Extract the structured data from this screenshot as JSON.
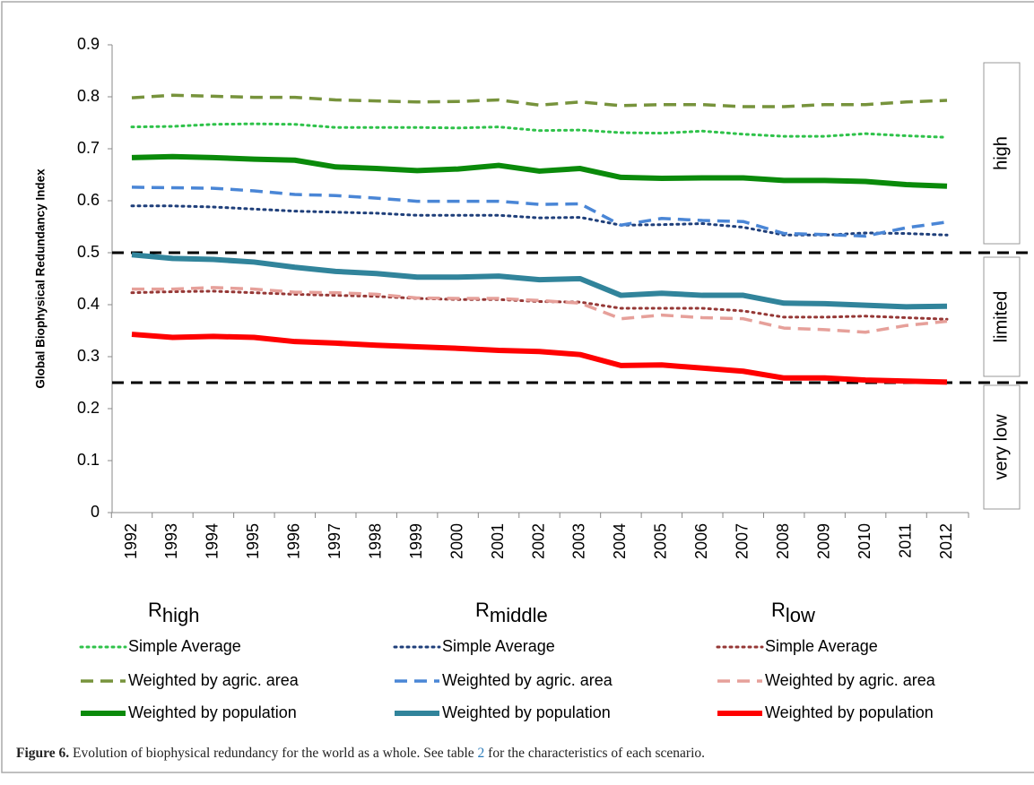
{
  "chart_data": {
    "type": "line",
    "y_label": "Global Biophysical Redundancy Index",
    "categories": [
      "1992",
      "1993",
      "1994",
      "1995",
      "1996",
      "1997",
      "1998",
      "1999",
      "2000",
      "2001",
      "2002",
      "2003",
      "2004",
      "2005",
      "2006",
      "2007",
      "2008",
      "2009",
      "2010",
      "2011",
      "2012"
    ],
    "ylim": [
      0,
      0.9
    ],
    "yticks": [
      0,
      0.1,
      0.2,
      0.3,
      0.4,
      0.5,
      0.6,
      0.7,
      0.8,
      0.9
    ],
    "thresholds": [
      0.5,
      0.25
    ],
    "bands": [
      "high",
      "limited",
      "very low"
    ],
    "legend_groups": [
      {
        "base": "R",
        "subscript": "high"
      },
      {
        "base": "R",
        "subscript": "middle"
      },
      {
        "base": "R",
        "subscript": "low"
      }
    ],
    "series": [
      {
        "name": "Simple Average",
        "color": "#2fc24a",
        "style": "dotted",
        "values": [
          0.742,
          0.743,
          0.747,
          0.748,
          0.747,
          0.741,
          0.741,
          0.741,
          0.74,
          0.742,
          0.735,
          0.736,
          0.731,
          0.73,
          0.734,
          0.728,
          0.724,
          0.724,
          0.729,
          0.725,
          0.722
        ]
      },
      {
        "name": "Weighted by agric. area",
        "color": "#77933c",
        "style": "dashed",
        "values": [
          0.798,
          0.803,
          0.801,
          0.799,
          0.799,
          0.794,
          0.792,
          0.79,
          0.791,
          0.794,
          0.784,
          0.79,
          0.783,
          0.785,
          0.785,
          0.781,
          0.781,
          0.785,
          0.785,
          0.79,
          0.793
        ]
      },
      {
        "name": "Weighted by population",
        "color": "#0a8a0a",
        "style": "solid",
        "values": [
          0.683,
          0.685,
          0.683,
          0.68,
          0.678,
          0.665,
          0.662,
          0.658,
          0.661,
          0.668,
          0.657,
          0.662,
          0.645,
          0.643,
          0.644,
          0.644,
          0.639,
          0.639,
          0.637,
          0.631,
          0.628
        ]
      },
      {
        "name": "Simple Average",
        "color": "#1f3f7a",
        "style": "dotted",
        "values": [
          0.59,
          0.59,
          0.588,
          0.584,
          0.58,
          0.578,
          0.576,
          0.572,
          0.572,
          0.572,
          0.567,
          0.568,
          0.553,
          0.554,
          0.556,
          0.549,
          0.534,
          0.534,
          0.538,
          0.537,
          0.534
        ]
      },
      {
        "name": "Weighted by agric. area",
        "color": "#4a86d6",
        "style": "dashed",
        "values": [
          0.626,
          0.625,
          0.624,
          0.619,
          0.612,
          0.61,
          0.605,
          0.599,
          0.599,
          0.599,
          0.593,
          0.594,
          0.553,
          0.566,
          0.562,
          0.56,
          0.537,
          0.535,
          0.532,
          0.548,
          0.559
        ]
      },
      {
        "name": "Weighted by population",
        "color": "#31849b",
        "style": "solid",
        "values": [
          0.496,
          0.489,
          0.487,
          0.482,
          0.472,
          0.464,
          0.46,
          0.453,
          0.453,
          0.455,
          0.448,
          0.45,
          0.418,
          0.422,
          0.418,
          0.418,
          0.403,
          0.402,
          0.399,
          0.396,
          0.397
        ]
      },
      {
        "name": "Simple Average",
        "color": "#953735",
        "style": "dotted",
        "values": [
          0.423,
          0.425,
          0.426,
          0.423,
          0.42,
          0.418,
          0.416,
          0.412,
          0.41,
          0.41,
          0.406,
          0.405,
          0.393,
          0.393,
          0.393,
          0.388,
          0.376,
          0.376,
          0.378,
          0.375,
          0.372
        ]
      },
      {
        "name": "Weighted by agric. area",
        "color": "#e6a09a",
        "style": "dashed",
        "values": [
          0.43,
          0.43,
          0.433,
          0.43,
          0.424,
          0.423,
          0.42,
          0.413,
          0.412,
          0.412,
          0.408,
          0.403,
          0.373,
          0.38,
          0.375,
          0.373,
          0.355,
          0.352,
          0.347,
          0.36,
          0.368
        ]
      },
      {
        "name": "Weighted by population",
        "color": "#ff0000",
        "style": "solid",
        "values": [
          0.343,
          0.337,
          0.339,
          0.337,
          0.329,
          0.326,
          0.322,
          0.319,
          0.316,
          0.312,
          0.31,
          0.304,
          0.283,
          0.284,
          0.278,
          0.272,
          0.259,
          0.259,
          0.255,
          0.253,
          0.251
        ]
      }
    ]
  },
  "caption": {
    "label": "Figure 6.",
    "text_before": "Evolution of biophysical redundancy for the world as a whole. See table ",
    "ref": "2",
    "text_after": " for the characteristics of each scenario."
  }
}
